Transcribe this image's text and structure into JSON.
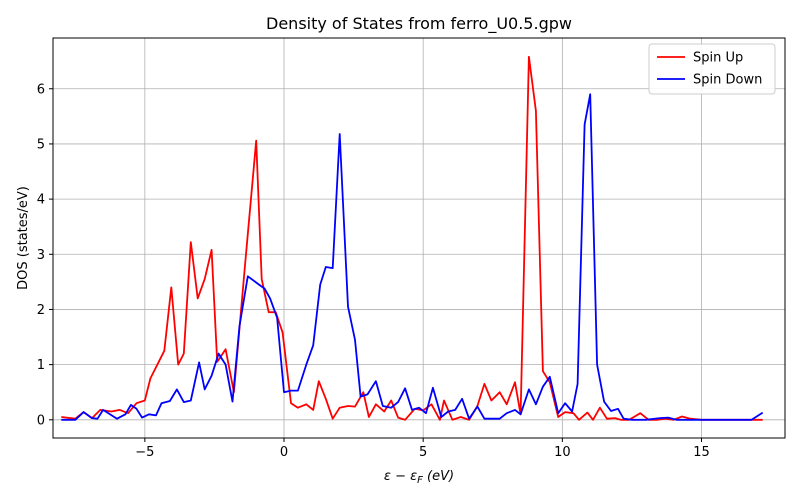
{
  "chart_data": {
    "type": "line",
    "title": "Density of States from ferro_U0.5.gpw",
    "xlabel": "ε − ε",
    "xlabel_sub": "F",
    "xlabel_unit": " (eV)",
    "ylabel": "DOS (states/eV)",
    "xlim": [
      -8.3,
      18.0
    ],
    "ylim": [
      -0.33,
      6.92
    ],
    "xticks": [
      -5,
      0,
      5,
      10,
      15
    ],
    "yticks": [
      0,
      1,
      2,
      3,
      4,
      5,
      6
    ],
    "grid": true,
    "legend_position": "top-right",
    "series": [
      {
        "name": "Spin Up",
        "color": "#ff0000",
        "points": [
          [
            -8.0,
            0.05
          ],
          [
            -7.5,
            0.02
          ],
          [
            -7.2,
            0.14
          ],
          [
            -6.9,
            0.03
          ],
          [
            -6.6,
            0.18
          ],
          [
            -6.2,
            0.15
          ],
          [
            -5.9,
            0.18
          ],
          [
            -5.6,
            0.12
          ],
          [
            -5.3,
            0.3
          ],
          [
            -5.0,
            0.35
          ],
          [
            -4.8,
            0.75
          ],
          [
            -4.3,
            1.25
          ],
          [
            -4.05,
            2.4
          ],
          [
            -3.8,
            1.0
          ],
          [
            -3.6,
            1.2
          ],
          [
            -3.35,
            3.22
          ],
          [
            -3.1,
            2.2
          ],
          [
            -2.85,
            2.55
          ],
          [
            -2.6,
            3.08
          ],
          [
            -2.4,
            1.05
          ],
          [
            -2.1,
            1.28
          ],
          [
            -1.8,
            0.5
          ],
          [
            -1.4,
            2.8
          ],
          [
            -1.0,
            5.06
          ],
          [
            -0.8,
            2.55
          ],
          [
            -0.55,
            1.95
          ],
          [
            -0.3,
            1.95
          ],
          [
            -0.05,
            1.58
          ],
          [
            0.25,
            0.3
          ],
          [
            0.5,
            0.22
          ],
          [
            0.8,
            0.28
          ],
          [
            1.05,
            0.18
          ],
          [
            1.25,
            0.7
          ],
          [
            1.5,
            0.38
          ],
          [
            1.75,
            0.02
          ],
          [
            2.0,
            0.22
          ],
          [
            2.3,
            0.25
          ],
          [
            2.55,
            0.24
          ],
          [
            2.85,
            0.5
          ],
          [
            3.05,
            0.05
          ],
          [
            3.3,
            0.28
          ],
          [
            3.6,
            0.15
          ],
          [
            3.85,
            0.35
          ],
          [
            4.1,
            0.04
          ],
          [
            4.35,
            0.0
          ],
          [
            4.7,
            0.2
          ],
          [
            5.0,
            0.17
          ],
          [
            5.3,
            0.28
          ],
          [
            5.6,
            0.0
          ],
          [
            5.75,
            0.35
          ],
          [
            6.05,
            0.0
          ],
          [
            6.35,
            0.05
          ],
          [
            6.65,
            0.0
          ],
          [
            6.95,
            0.25
          ],
          [
            7.2,
            0.65
          ],
          [
            7.45,
            0.35
          ],
          [
            7.75,
            0.5
          ],
          [
            8.0,
            0.28
          ],
          [
            8.3,
            0.68
          ],
          [
            8.5,
            0.1
          ],
          [
            8.8,
            6.58
          ],
          [
            9.05,
            5.6
          ],
          [
            9.3,
            0.88
          ],
          [
            9.55,
            0.68
          ],
          [
            9.85,
            0.05
          ],
          [
            10.1,
            0.14
          ],
          [
            10.4,
            0.12
          ],
          [
            10.6,
            0.0
          ],
          [
            10.9,
            0.13
          ],
          [
            11.1,
            0.0
          ],
          [
            11.35,
            0.22
          ],
          [
            11.6,
            0.02
          ],
          [
            11.9,
            0.03
          ],
          [
            12.1,
            0.0
          ],
          [
            12.4,
            0.0
          ],
          [
            12.8,
            0.12
          ],
          [
            13.1,
            0.0
          ],
          [
            13.4,
            0.0
          ],
          [
            13.7,
            0.02
          ],
          [
            14.0,
            0.0
          ],
          [
            14.3,
            0.06
          ],
          [
            14.6,
            0.02
          ],
          [
            15.0,
            0.0
          ],
          [
            15.5,
            0.0
          ],
          [
            16.0,
            0.0
          ],
          [
            16.5,
            0.0
          ],
          [
            17.2,
            0.0
          ]
        ]
      },
      {
        "name": "Spin Down",
        "color": "#0000ff",
        "points": [
          [
            -8.0,
            0.0
          ],
          [
            -7.5,
            0.0
          ],
          [
            -7.2,
            0.14
          ],
          [
            -6.9,
            0.03
          ],
          [
            -6.7,
            0.02
          ],
          [
            -6.5,
            0.18
          ],
          [
            -6.0,
            0.02
          ],
          [
            -5.7,
            0.1
          ],
          [
            -5.5,
            0.27
          ],
          [
            -5.3,
            0.2
          ],
          [
            -5.1,
            0.04
          ],
          [
            -4.85,
            0.1
          ],
          [
            -4.6,
            0.08
          ],
          [
            -4.4,
            0.3
          ],
          [
            -4.1,
            0.34
          ],
          [
            -3.85,
            0.55
          ],
          [
            -3.6,
            0.32
          ],
          [
            -3.35,
            0.35
          ],
          [
            -3.05,
            1.04
          ],
          [
            -2.85,
            0.55
          ],
          [
            -2.6,
            0.8
          ],
          [
            -2.35,
            1.2
          ],
          [
            -2.1,
            1.0
          ],
          [
            -1.85,
            0.33
          ],
          [
            -1.6,
            1.7
          ],
          [
            -1.3,
            2.6
          ],
          [
            -0.9,
            2.45
          ],
          [
            -0.7,
            2.38
          ],
          [
            -0.5,
            2.2
          ],
          [
            -0.25,
            1.85
          ],
          [
            0.0,
            0.5
          ],
          [
            0.25,
            0.53
          ],
          [
            0.5,
            0.53
          ],
          [
            0.8,
            1.0
          ],
          [
            1.05,
            1.35
          ],
          [
            1.3,
            2.45
          ],
          [
            1.5,
            2.77
          ],
          [
            1.75,
            2.75
          ],
          [
            2.0,
            5.18
          ],
          [
            2.3,
            2.05
          ],
          [
            2.55,
            1.45
          ],
          [
            2.75,
            0.42
          ],
          [
            3.0,
            0.46
          ],
          [
            3.3,
            0.7
          ],
          [
            3.55,
            0.25
          ],
          [
            3.85,
            0.22
          ],
          [
            4.1,
            0.32
          ],
          [
            4.35,
            0.57
          ],
          [
            4.6,
            0.18
          ],
          [
            4.85,
            0.22
          ],
          [
            5.1,
            0.12
          ],
          [
            5.35,
            0.58
          ],
          [
            5.65,
            0.05
          ],
          [
            5.9,
            0.15
          ],
          [
            6.15,
            0.18
          ],
          [
            6.4,
            0.38
          ],
          [
            6.65,
            0.02
          ],
          [
            6.95,
            0.24
          ],
          [
            7.2,
            0.02
          ],
          [
            7.5,
            0.02
          ],
          [
            7.75,
            0.02
          ],
          [
            8.0,
            0.12
          ],
          [
            8.3,
            0.18
          ],
          [
            8.5,
            0.1
          ],
          [
            8.8,
            0.55
          ],
          [
            9.05,
            0.28
          ],
          [
            9.3,
            0.6
          ],
          [
            9.55,
            0.78
          ],
          [
            9.85,
            0.12
          ],
          [
            10.1,
            0.3
          ],
          [
            10.35,
            0.15
          ],
          [
            10.55,
            0.65
          ],
          [
            10.8,
            5.35
          ],
          [
            11.0,
            5.9
          ],
          [
            11.25,
            1.0
          ],
          [
            11.5,
            0.33
          ],
          [
            11.75,
            0.16
          ],
          [
            12.0,
            0.2
          ],
          [
            12.2,
            0.02
          ],
          [
            12.5,
            0.0
          ],
          [
            13.0,
            0.0
          ],
          [
            13.5,
            0.03
          ],
          [
            13.8,
            0.04
          ],
          [
            14.1,
            0.0
          ],
          [
            14.5,
            0.0
          ],
          [
            15.0,
            0.0
          ],
          [
            15.5,
            0.0
          ],
          [
            16.0,
            0.0
          ],
          [
            16.8,
            0.0
          ],
          [
            17.2,
            0.13
          ]
        ]
      }
    ]
  }
}
